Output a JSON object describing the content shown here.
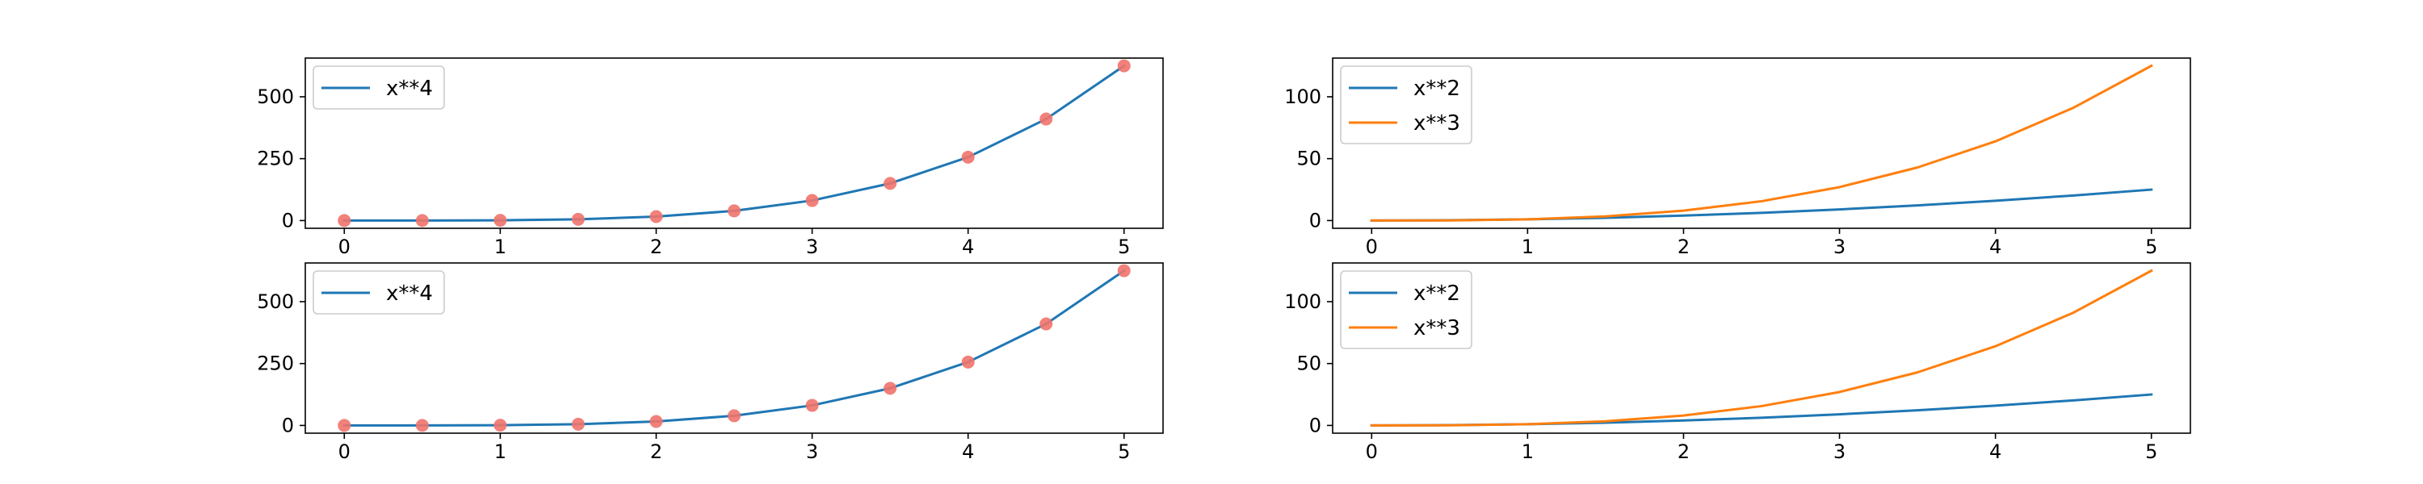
{
  "chart_data": [
    {
      "type": "line",
      "x": [
        0,
        0.5,
        1,
        1.5,
        2,
        2.5,
        3,
        3.5,
        4,
        4.5,
        5
      ],
      "series": [
        {
          "name": "x**4",
          "color": "#1f77b4",
          "values": [
            0,
            0.0625,
            1,
            5.0625,
            16,
            39.0625,
            81,
            150.0625,
            256,
            410.0625,
            625
          ],
          "markers": true,
          "marker_color": "#f0736b"
        }
      ],
      "xticks": [
        "0",
        "1",
        "2",
        "3",
        "4",
        "5"
      ],
      "yticks": [
        "0",
        "250",
        "500"
      ],
      "xlim": [
        -0.25,
        5.25
      ],
      "ylim": [
        -31.25,
        656.25
      ],
      "legend": "upper-left",
      "grid": false
    },
    {
      "type": "line",
      "x": [
        0,
        0.5,
        1,
        1.5,
        2,
        2.5,
        3,
        3.5,
        4,
        4.5,
        5
      ],
      "series": [
        {
          "name": "x**2",
          "color": "#1f77b4",
          "values": [
            0,
            0.25,
            1,
            2.25,
            4,
            6.25,
            9,
            12.25,
            16,
            20.25,
            25
          ]
        },
        {
          "name": "x**3",
          "color": "#ff7f0e",
          "values": [
            0,
            0.125,
            1,
            3.375,
            8,
            15.625,
            27,
            42.875,
            64,
            91.125,
            125
          ]
        }
      ],
      "xticks": [
        "0",
        "1",
        "2",
        "3",
        "4",
        "5"
      ],
      "yticks": [
        "0",
        "50",
        "100"
      ],
      "xlim": [
        -0.25,
        5.25
      ],
      "ylim": [
        -6.25,
        131.25
      ],
      "legend": "upper-left",
      "grid": false
    },
    {
      "type": "line",
      "x": [
        0,
        0.5,
        1,
        1.5,
        2,
        2.5,
        3,
        3.5,
        4,
        4.5,
        5
      ],
      "series": [
        {
          "name": "x**4",
          "color": "#1f77b4",
          "values": [
            0,
            0.0625,
            1,
            5.0625,
            16,
            39.0625,
            81,
            150.0625,
            256,
            410.0625,
            625
          ],
          "markers": true,
          "marker_color": "#f0736b"
        }
      ],
      "xticks": [
        "0",
        "1",
        "2",
        "3",
        "4",
        "5"
      ],
      "yticks": [
        "0",
        "250",
        "500"
      ],
      "xlim": [
        -0.25,
        5.25
      ],
      "ylim": [
        -31.25,
        656.25
      ],
      "legend": "upper-left",
      "grid": false
    },
    {
      "type": "line",
      "x": [
        0,
        0.5,
        1,
        1.5,
        2,
        2.5,
        3,
        3.5,
        4,
        4.5,
        5
      ],
      "series": [
        {
          "name": "x**2",
          "color": "#1f77b4",
          "values": [
            0,
            0.25,
            1,
            2.25,
            4,
            6.25,
            9,
            12.25,
            16,
            20.25,
            25
          ]
        },
        {
          "name": "x**3",
          "color": "#ff7f0e",
          "values": [
            0,
            0.125,
            1,
            3.375,
            8,
            15.625,
            27,
            42.875,
            64,
            91.125,
            125
          ]
        }
      ],
      "xticks": [
        "0",
        "1",
        "2",
        "3",
        "4",
        "5"
      ],
      "yticks": [
        "0",
        "50",
        "100"
      ],
      "xlim": [
        -0.25,
        5.25
      ],
      "ylim": [
        -6.25,
        131.25
      ],
      "legend": "upper-left",
      "grid": false
    }
  ]
}
